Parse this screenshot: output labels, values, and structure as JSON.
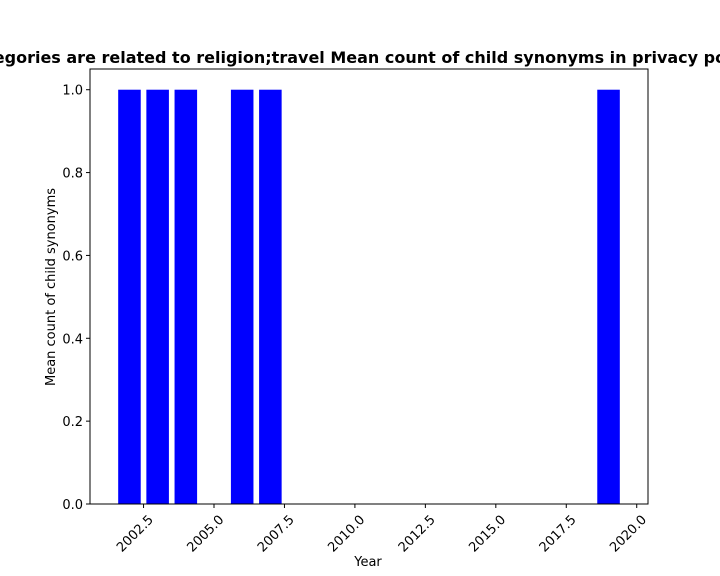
{
  "chart_data": {
    "type": "bar",
    "title": "Categories are related to religion;travel Mean count of child synonyms in privacy policies",
    "xlabel": "Year",
    "ylabel": "Mean count of child synonyms",
    "x": [
      2002,
      2003,
      2004,
      2006,
      2007,
      2019
    ],
    "values": [
      1.0,
      1.0,
      1.0,
      1.0,
      1.0,
      1.0
    ],
    "xlim": [
      2000.6,
      2020.4
    ],
    "ylim": [
      0,
      1.05
    ],
    "xticks": [
      2002.5,
      2005.0,
      2007.5,
      2010.0,
      2012.5,
      2015.0,
      2017.5,
      2020.0
    ],
    "xtick_labels": [
      "2002.5",
      "2005.0",
      "2007.5",
      "2010.0",
      "2012.5",
      "2015.0",
      "2017.5",
      "2020.0"
    ],
    "yticks": [
      0.0,
      0.2,
      0.4,
      0.6,
      0.8,
      1.0
    ],
    "ytick_labels": [
      "0.0",
      "0.2",
      "0.4",
      "0.6",
      "0.8",
      "1.0"
    ],
    "bar_color": "#0000ff",
    "grid": false,
    "legend": "none"
  }
}
